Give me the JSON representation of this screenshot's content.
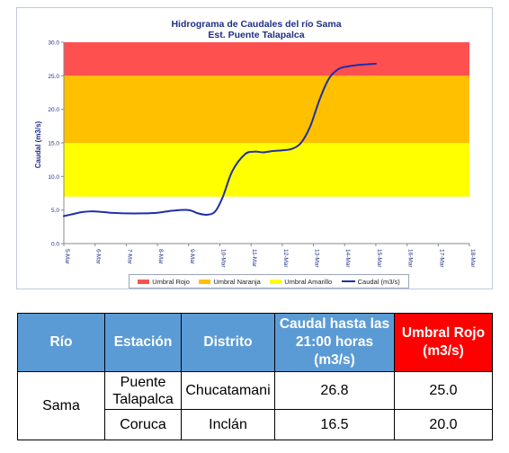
{
  "chart_data": {
    "type": "line",
    "title": "Hidrograma de Caudales del río Sama",
    "subtitle": "Est. Puente Talapalca",
    "ylabel": "Caudal (m3/s)",
    "xlabel": "",
    "ylim": [
      0,
      30
    ],
    "yticks": [
      "0.0",
      "5.0",
      "10.0",
      "15.0",
      "20.0",
      "25.0",
      "30.0"
    ],
    "categories": [
      "5-Mar",
      "6-Mar",
      "7-Mar",
      "8-Mar",
      "9-Mar",
      "10-Mar",
      "11-Mar",
      "12-Mar",
      "13-Mar",
      "14-Mar",
      "15-Mar",
      "16-Mar",
      "17-Mar",
      "18-Mar"
    ],
    "bands": [
      {
        "name": "Umbral Rojo",
        "from": 25,
        "to": 30,
        "color": "#ff5050"
      },
      {
        "name": "Umbral Naranja",
        "from": 15,
        "to": 25,
        "color": "#ffc000"
      },
      {
        "name": "Umbral Amarillo",
        "from": 7,
        "to": 15,
        "color": "#ffff00"
      }
    ],
    "series": [
      {
        "name": "Caudal (m3/s)",
        "color": "#1f2fa6",
        "x": [
          0,
          0.3,
          0.6,
          1.0,
          1.5,
          2.0,
          2.5,
          3.0,
          3.5,
          4.0,
          4.3,
          4.6,
          4.85,
          5.1,
          5.4,
          5.8,
          6.1,
          6.4,
          6.7,
          7.0,
          7.3,
          7.6,
          7.9,
          8.2,
          8.5,
          8.8,
          9.1,
          9.4,
          9.7,
          10.0
        ],
        "y": [
          4.1,
          4.4,
          4.7,
          4.8,
          4.6,
          4.5,
          4.5,
          4.6,
          4.9,
          5.0,
          4.5,
          4.3,
          4.8,
          7.0,
          10.8,
          13.3,
          13.7,
          13.6,
          13.8,
          13.9,
          14.1,
          15.0,
          17.5,
          21.5,
          24.6,
          26.0,
          26.4,
          26.6,
          26.7,
          26.8
        ]
      }
    ],
    "grid": false,
    "legend_position": "bottom"
  },
  "table": {
    "headers": [
      "Río",
      "Estación",
      "Distrito",
      "Caudal hasta las 21:00 horas (m3/s)",
      "Umbral Rojo (m3/s)"
    ],
    "river": "Sama",
    "rows": [
      {
        "station": "Puente Talapalca",
        "district": "Chucatamani",
        "flow": "26.8",
        "red_threshold": "25.0"
      },
      {
        "station": "Coruca",
        "district": "Inclán",
        "flow": "16.5",
        "red_threshold": "20.0"
      }
    ]
  }
}
